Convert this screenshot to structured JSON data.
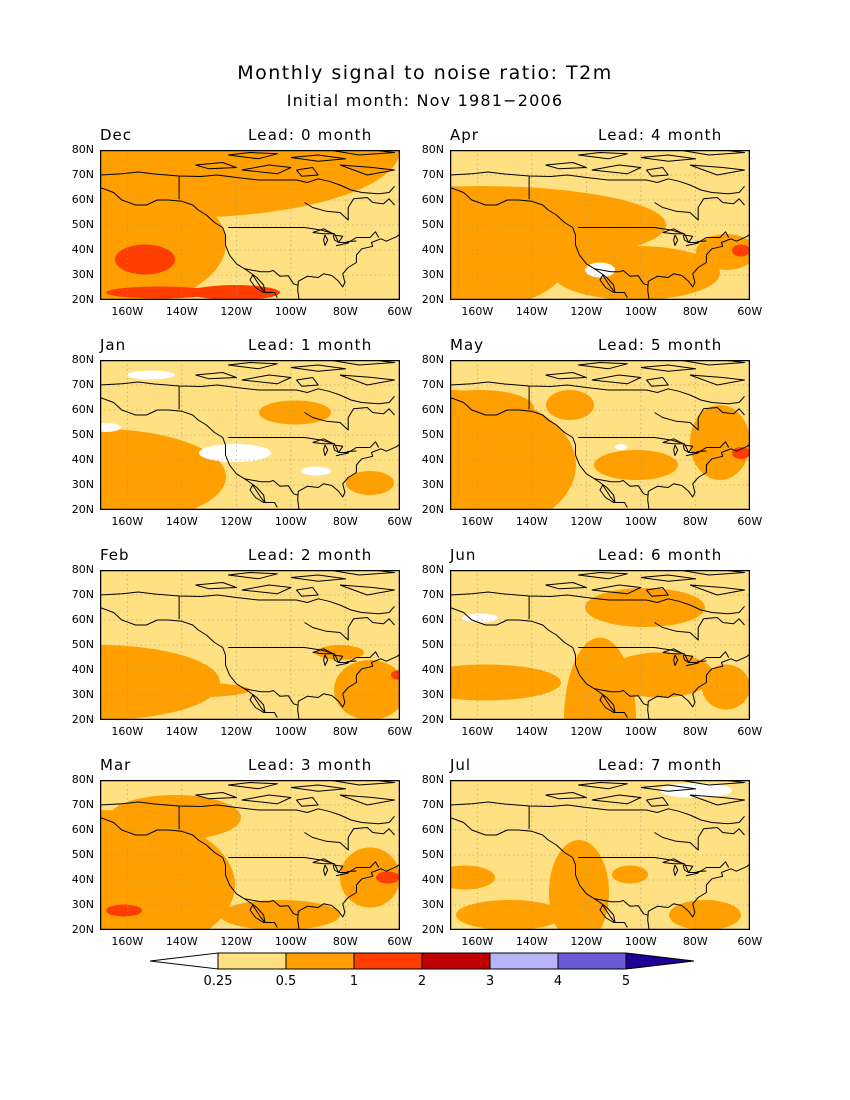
{
  "figure": {
    "title": "Monthly signal to noise ratio: T2m",
    "subtitle": "Initial month: Nov 1981−2006"
  },
  "chart_data": {
    "type": "heatmap",
    "variable": "T2m signal to noise ratio",
    "map_extent": {
      "lon": [
        "170W",
        "60W"
      ],
      "lat": [
        "20N",
        "80N"
      ]
    },
    "y_ticks": [
      "80N",
      "70N",
      "60N",
      "50N",
      "40N",
      "30N",
      "20N"
    ],
    "x_ticks": [
      "160W",
      "140W",
      "120W",
      "100W",
      "80W",
      "60W"
    ],
    "grid": "dotted",
    "panels": [
      {
        "month": "Dec",
        "lead": "Lead: 0 month",
        "background_class": 1,
        "regions": [
          [
            2,
            0.28,
            0,
            0.72,
            0.45
          ],
          [
            2,
            0,
            0.62,
            0.42,
            0.45
          ],
          [
            2,
            0,
            0.2,
            0.55,
            0.25
          ],
          [
            2,
            0.5,
            0.02,
            0.5,
            0.18
          ],
          [
            3,
            0.15,
            0.73,
            0.1,
            0.1
          ],
          [
            3,
            0.2,
            0.95,
            0.18,
            0.04
          ],
          [
            3,
            0.45,
            0.95,
            0.15,
            0.05
          ]
        ]
      },
      {
        "month": "Apr",
        "lead": "Lead: 4 month",
        "background_class": 1,
        "regions": [
          [
            2,
            0.1,
            0.5,
            0.62,
            0.26
          ],
          [
            2,
            0,
            0.78,
            0.38,
            0.3
          ],
          [
            2,
            0.62,
            0.82,
            0.28,
            0.18
          ],
          [
            2,
            0.92,
            0.68,
            0.1,
            0.12
          ],
          [
            0,
            0.5,
            0.8,
            0.05,
            0.05
          ],
          [
            3,
            0.97,
            0.67,
            0.03,
            0.04
          ]
        ]
      },
      {
        "month": "Jan",
        "lead": "Lead: 1 month",
        "background_class": 1,
        "regions": [
          [
            2,
            0,
            0.78,
            0.42,
            0.32
          ],
          [
            2,
            0.65,
            0.35,
            0.12,
            0.08
          ],
          [
            2,
            0.9,
            0.82,
            0.08,
            0.08
          ],
          [
            0,
            0.17,
            0.1,
            0.08,
            0.03
          ],
          [
            0,
            0.45,
            0.62,
            0.12,
            0.06
          ],
          [
            0,
            0.72,
            0.74,
            0.05,
            0.03
          ],
          [
            0,
            0.02,
            0.45,
            0.05,
            0.03
          ]
        ]
      },
      {
        "month": "May",
        "lead": "Lead: 5 month",
        "background_class": 1,
        "regions": [
          [
            2,
            0,
            0.7,
            0.42,
            0.5
          ],
          [
            2,
            0.1,
            0.32,
            0.18,
            0.12
          ],
          [
            2,
            0.4,
            0.3,
            0.08,
            0.1
          ],
          [
            2,
            0.62,
            0.7,
            0.14,
            0.1
          ],
          [
            2,
            0.9,
            0.55,
            0.1,
            0.25
          ],
          [
            3,
            0.97,
            0.62,
            0.03,
            0.04
          ],
          [
            0,
            0.57,
            0.58,
            0.02,
            0.02
          ]
        ]
      },
      {
        "month": "Feb",
        "lead": "Lead: 2 month",
        "background_class": 1,
        "regions": [
          [
            2,
            0,
            0.75,
            0.4,
            0.25
          ],
          [
            2,
            0.9,
            0.8,
            0.12,
            0.2
          ],
          [
            2,
            0.8,
            0.55,
            0.08,
            0.05
          ],
          [
            2,
            0.3,
            0.8,
            0.2,
            0.05
          ],
          [
            3,
            0.99,
            0.7,
            0.02,
            0.03
          ]
        ]
      },
      {
        "month": "Jun",
        "lead": "Lead: 6 month",
        "background_class": 1,
        "regions": [
          [
            2,
            0.12,
            0.75,
            0.25,
            0.12
          ],
          [
            2,
            0.5,
            1,
            0.12,
            0.55
          ],
          [
            2,
            0.7,
            0.7,
            0.18,
            0.15
          ],
          [
            2,
            0.65,
            0.25,
            0.2,
            0.13
          ],
          [
            2,
            0.92,
            0.78,
            0.08,
            0.15
          ],
          [
            0,
            0.1,
            0.32,
            0.06,
            0.03
          ]
        ]
      },
      {
        "month": "Mar",
        "lead": "Lead: 3 month",
        "background_class": 1,
        "regions": [
          [
            2,
            0,
            0.7,
            0.45,
            0.5
          ],
          [
            2,
            0.25,
            0.25,
            0.22,
            0.15
          ],
          [
            2,
            0.6,
            0.9,
            0.2,
            0.1
          ],
          [
            2,
            0.9,
            0.65,
            0.1,
            0.2
          ],
          [
            3,
            0.08,
            0.87,
            0.06,
            0.04
          ],
          [
            3,
            0.96,
            0.65,
            0.04,
            0.04
          ]
        ]
      },
      {
        "month": "Jul",
        "lead": "Lead: 7 month",
        "background_class": 1,
        "regions": [
          [
            2,
            0.05,
            0.65,
            0.1,
            0.08
          ],
          [
            2,
            0.2,
            0.9,
            0.18,
            0.1
          ],
          [
            2,
            0.43,
            0.75,
            0.1,
            0.35
          ],
          [
            2,
            0.6,
            0.63,
            0.06,
            0.06
          ],
          [
            2,
            0.85,
            0.9,
            0.12,
            0.1
          ],
          [
            0,
            0.82,
            0.07,
            0.12,
            0.05
          ]
        ]
      }
    ],
    "colorbar": {
      "levels": [
        "0.25",
        "0.5",
        "1",
        "2",
        "3",
        "4",
        "5"
      ],
      "colors": [
        "#ffffff",
        "#ffe082",
        "#ffa000",
        "#ff3d00",
        "#c00000",
        "#b8b4f8",
        "#6a5ad8",
        "#1e0096"
      ]
    }
  }
}
